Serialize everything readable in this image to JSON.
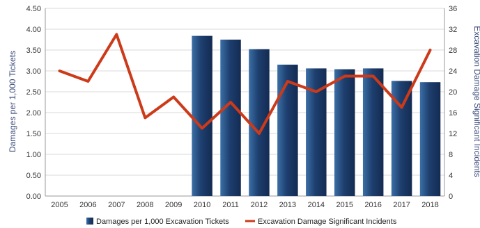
{
  "chart_data": {
    "type": "bar",
    "categories": [
      "2005",
      "2006",
      "2007",
      "2008",
      "2009",
      "2010",
      "2011",
      "2012",
      "2013",
      "2014",
      "2015",
      "2016",
      "2017",
      "2018"
    ],
    "series": [
      {
        "name": "Damages per 1,000 Excavation Tickets",
        "type": "bar",
        "axis": "left",
        "color": "#1f3f6e",
        "values": [
          null,
          null,
          null,
          null,
          null,
          3.84,
          3.75,
          3.52,
          3.15,
          3.06,
          3.04,
          3.06,
          2.76,
          2.73
        ]
      },
      {
        "name": "Excavation Damage Significant Incidents",
        "type": "line",
        "axis": "right",
        "color": "#cc3a1a",
        "values": [
          24,
          22,
          31,
          15,
          19,
          13,
          18,
          12,
          22,
          20,
          23,
          23,
          17,
          28
        ]
      }
    ],
    "ylabel": "Damages per 1,000 Tickets",
    "y2label": "Excavation Damage Significant Incidents",
    "ylim": [
      0,
      4.5
    ],
    "y2lim": [
      0,
      36
    ],
    "yticks": [
      "0.00",
      "0.50",
      "1.00",
      "1.50",
      "2.00",
      "2.50",
      "3.00",
      "3.50",
      "4.00",
      "4.50"
    ],
    "y2ticks": [
      "0",
      "4",
      "8",
      "12",
      "16",
      "20",
      "24",
      "28",
      "32",
      "36"
    ],
    "grid": true,
    "legend_position": "bottom"
  }
}
